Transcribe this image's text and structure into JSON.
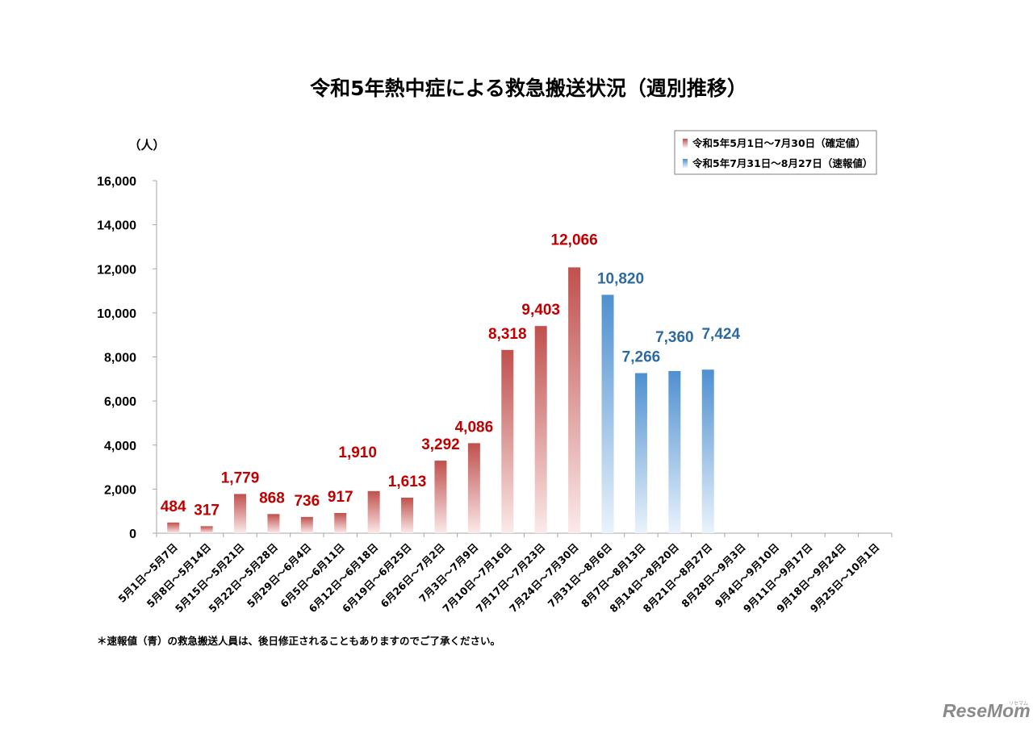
{
  "colors": {
    "confirmed_dark": "#c0504d",
    "confirmed_label": "#c00000",
    "preliminary_dark": "#4f90d0",
    "preliminary_label": "#2e6aa0",
    "axis": "#a6a6a6"
  },
  "chart_data": {
    "type": "bar",
    "title": "令和5年熱中症による救急搬送状況（週別推移）",
    "unit_label": "（人）",
    "ylim": [
      0,
      16000
    ],
    "yticks": [
      "0",
      "2,000",
      "4,000",
      "6,000",
      "8,000",
      "10,000",
      "12,000",
      "14,000",
      "16,000"
    ],
    "ytick_values": [
      0,
      2000,
      4000,
      6000,
      8000,
      10000,
      12000,
      14000,
      16000
    ],
    "categories": [
      "5月1日～5月7日",
      "5月8日～5月14日",
      "5月15日～5月21日",
      "5月22日～5月28日",
      "5月29日～6月4日",
      "6月5日～6月11日",
      "6月12日～6月18日",
      "6月19日～6月25日",
      "6月26日～7月2日",
      "7月3日～7月9日",
      "7月10日～7月16日",
      "7月17日～7月23日",
      "7月24日～7月30日",
      "7月31日～8月6日",
      "8月7日～8月13日",
      "8月14日～8月20日",
      "8月21日～8月27日",
      "8月28日～9月3日",
      "9月4日～9月10日",
      "9月11日～9月17日",
      "9月18日～9月24日",
      "9月25日～10月1日"
    ],
    "series": [
      {
        "name": "令和5年5月1日～7月30日（確定値）",
        "values": [
          484,
          317,
          1779,
          868,
          736,
          917,
          1910,
          1613,
          3292,
          4086,
          8318,
          9403,
          12066,
          null,
          null,
          null,
          null,
          null,
          null,
          null,
          null,
          null
        ],
        "labels": [
          "484",
          "317",
          "1,779",
          "868",
          "736",
          "917",
          "1,910",
          "1,613",
          "3,292",
          "4,086",
          "8,318",
          "9,403",
          "12,066",
          "",
          "",
          "",
          "",
          "",
          "",
          "",
          "",
          ""
        ]
      },
      {
        "name": "令和5年7月31日～8月27日（速報値）",
        "values": [
          null,
          null,
          null,
          null,
          null,
          null,
          null,
          null,
          null,
          null,
          null,
          null,
          null,
          10820,
          7266,
          7360,
          7424,
          null,
          null,
          null,
          null,
          null
        ],
        "labels": [
          "",
          "",
          "",
          "",
          "",
          "",
          "",
          "",
          "",
          "",
          "",
          "",
          "",
          "10,820",
          "7,266",
          "7,360",
          "7,424",
          "",
          "",
          "",
          "",
          ""
        ]
      }
    ],
    "legend_position": "top-right",
    "grid": false
  },
  "note": "＊速報値（青）の救急搬送人員は、後日修正されることもありますのでご了承ください。",
  "watermark": {
    "brand": "ReseMom",
    "small": "リセマム"
  }
}
